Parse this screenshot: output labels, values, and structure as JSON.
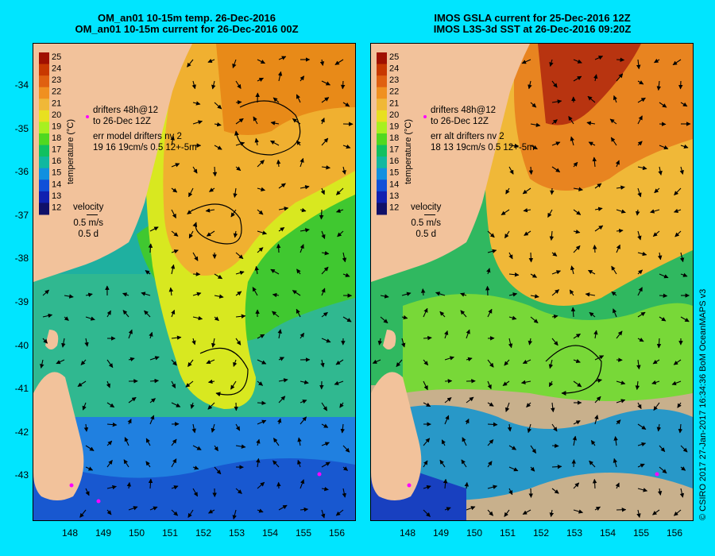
{
  "left_panel": {
    "title_line1": "OM_an01 10-15m temp. 26-Dec-2016",
    "title_line2": "OM_an01 10-15m current for 26-Dec-2016 00Z",
    "colorbar_label": "temperature (°C)",
    "annotation1_a": "drifters 48h@12",
    "annotation1_b": "to 26-Dec 12Z",
    "annotation2_a": "err model drifters nv 2",
    "annotation2_b": "19 16 19cm/s 0.5 12+-5m",
    "velocity_label": "velocity",
    "velocity_speed": "0.5 m/s",
    "velocity_time": "0.5 d"
  },
  "right_panel": {
    "title_line1": "IMOS GSLA current for 25-Dec-2016 12Z",
    "title_line2": "IMOS L3S-3d SST at 26-Dec-2016 09:20Z",
    "colorbar_label": "temperature (°C)",
    "annotation1_a": "drifters 48h@12",
    "annotation1_b": "to 26-Dec 12Z",
    "annotation2_a": "err alt drifters nv 2",
    "annotation2_b": "18 13 19cm/s 0.5 12+-5m",
    "velocity_label": "velocity",
    "velocity_speed": "0.5 m/s",
    "velocity_time": "0.5 d"
  },
  "y_axis_labels": [
    "-34",
    "-35",
    "-36",
    "-37",
    "-38",
    "-39",
    "-40",
    "-41",
    "-42",
    "-43"
  ],
  "x_axis_labels": [
    "148",
    "149",
    "150",
    "151",
    "152",
    "153",
    "154",
    "155",
    "156"
  ],
  "colorbar_ticks": [
    "25",
    "24",
    "23",
    "22",
    "21",
    "20",
    "19",
    "18",
    "17",
    "16",
    "15",
    "14",
    "13",
    "12"
  ],
  "colorbar_colors": [
    "#a01000",
    "#c83800",
    "#e06010",
    "#f09020",
    "#f0b838",
    "#e8e020",
    "#a8f020",
    "#50d820",
    "#10c060",
    "#10b8a0",
    "#1090e0",
    "#1050d8",
    "#1020b0",
    "#101068"
  ],
  "credit": "© CSIRO 2017   27-Jan-2017 16:34:36 BoM OceanMAPS v3",
  "colors": {
    "background": "#00e5ff",
    "land": "#f2c29b",
    "arrow": "#000000",
    "drifter": "#ff00ff",
    "no_data": "#c8b08c"
  }
}
